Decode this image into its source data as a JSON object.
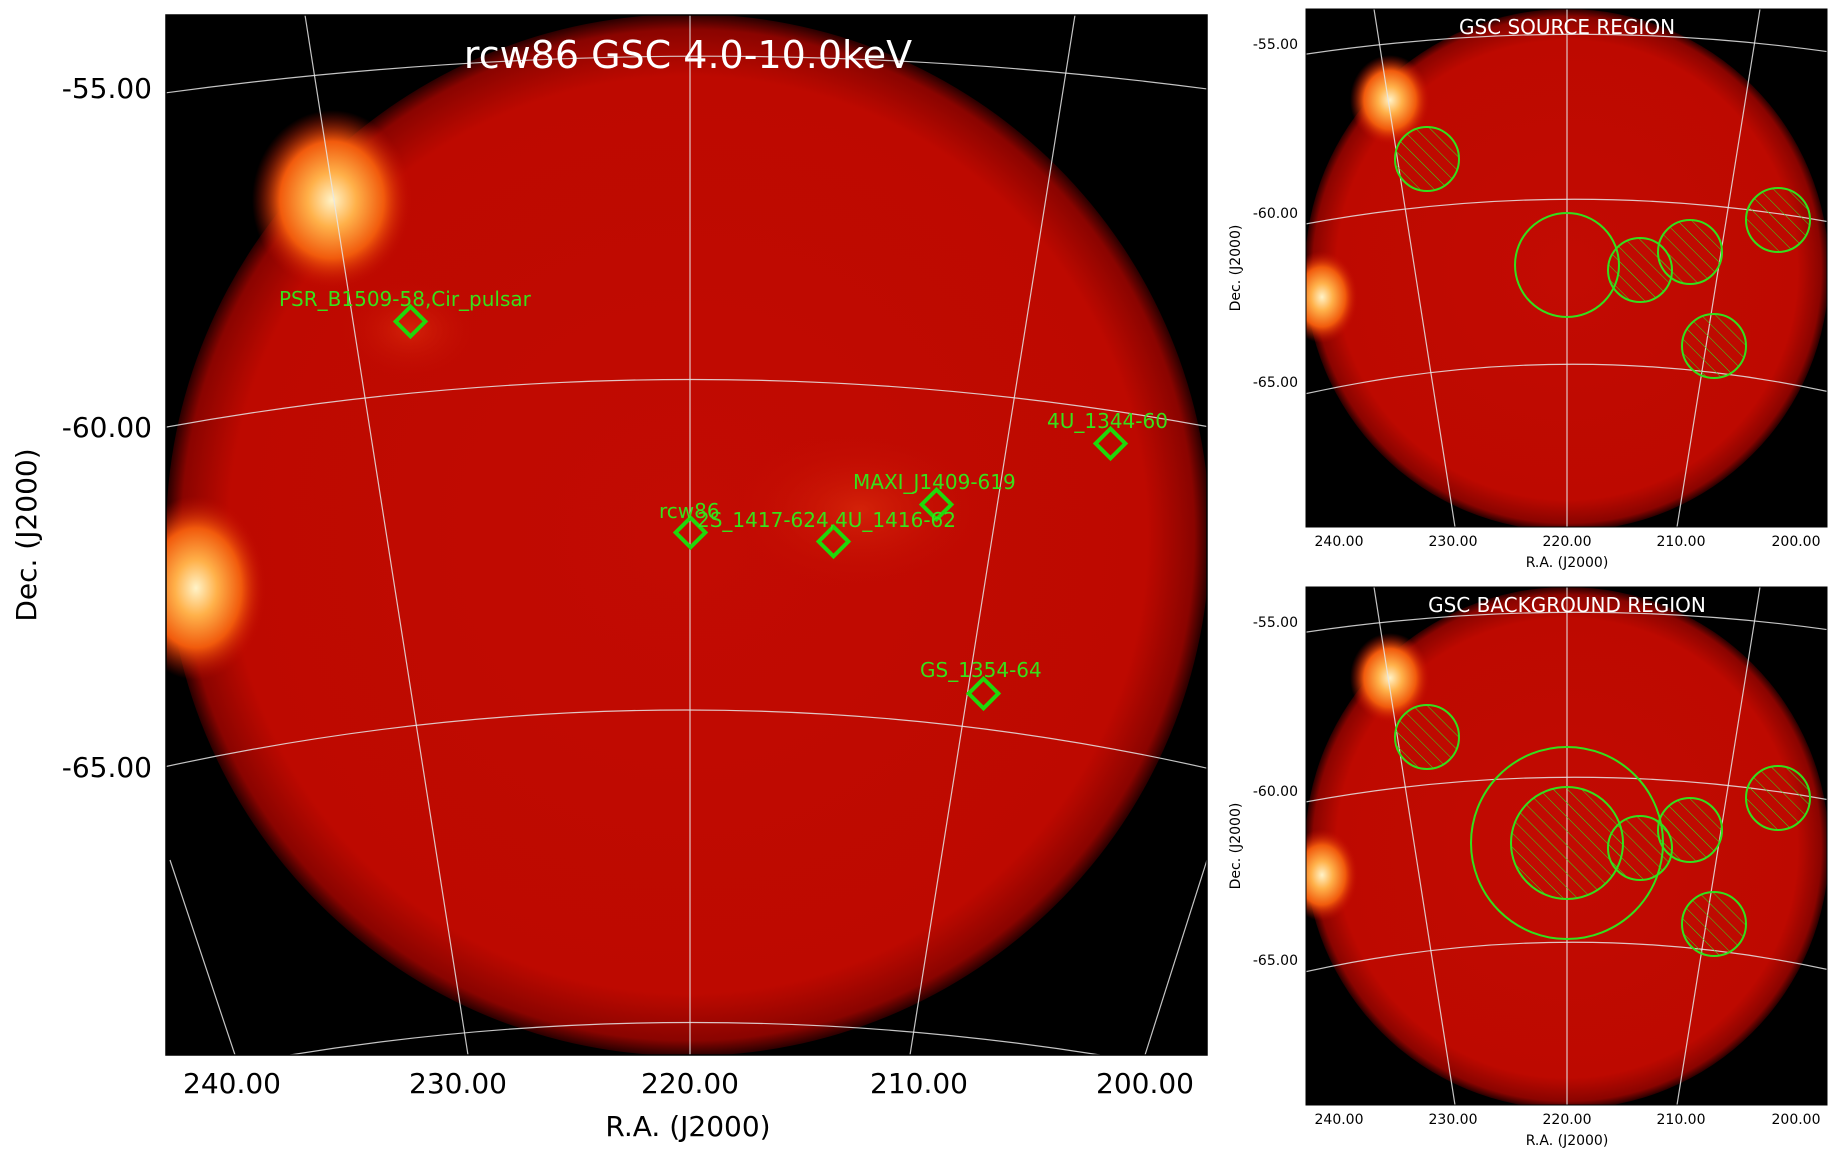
{
  "main_panel": {
    "title": "rcw86 GSC 4.0-10.0keV",
    "xlabel": "R.A. (J2000)",
    "ylabel": "Dec. (J2000)",
    "x_ticks": [
      "240.00",
      "230.00",
      "220.00",
      "210.00",
      "200.00"
    ],
    "y_ticks": [
      "-55.00",
      "-60.00",
      "-65.00"
    ],
    "sources": [
      {
        "name": "PSR_B1509-58,Cir_pulsar",
        "ra": 232.5,
        "dec": -58.1
      },
      {
        "name": "4U_1344-60",
        "ra": 201.1,
        "dec": -60.2
      },
      {
        "name": "MAXI_J1409-619",
        "ra": 209.0,
        "dec": -61.3
      },
      {
        "name": "rcw86",
        "ra": 220.0,
        "dec": -61.7
      },
      {
        "name": "2S_1417-624,4U_1416-62",
        "ra": 213.8,
        "dec": -61.8
      },
      {
        "name": "GS_1354-64",
        "ra": 206.8,
        "dec": -64.1
      }
    ]
  },
  "source_panel": {
    "title": "GSC SOURCE REGION",
    "xlabel": "R.A. (J2000)",
    "ylabel": "Dec. (J2000)",
    "x_ticks": [
      "240.00",
      "230.00",
      "220.00",
      "210.00",
      "200.00"
    ],
    "y_ticks": [
      "-55.00",
      "-60.00",
      "-65.00"
    ]
  },
  "background_panel": {
    "title": "GSC BACKGROUND REGION",
    "xlabel": "R.A. (J2000)",
    "ylabel": "Dec. (J2000)",
    "x_ticks": [
      "240.00",
      "230.00",
      "220.00",
      "210.00",
      "200.00"
    ],
    "y_ticks": [
      "-55.00",
      "-60.00",
      "-65.00"
    ]
  },
  "colors": {
    "disk": "#c00a00",
    "background": "#000000",
    "marker": "#20d80a",
    "grid": "#e6e6e6"
  }
}
